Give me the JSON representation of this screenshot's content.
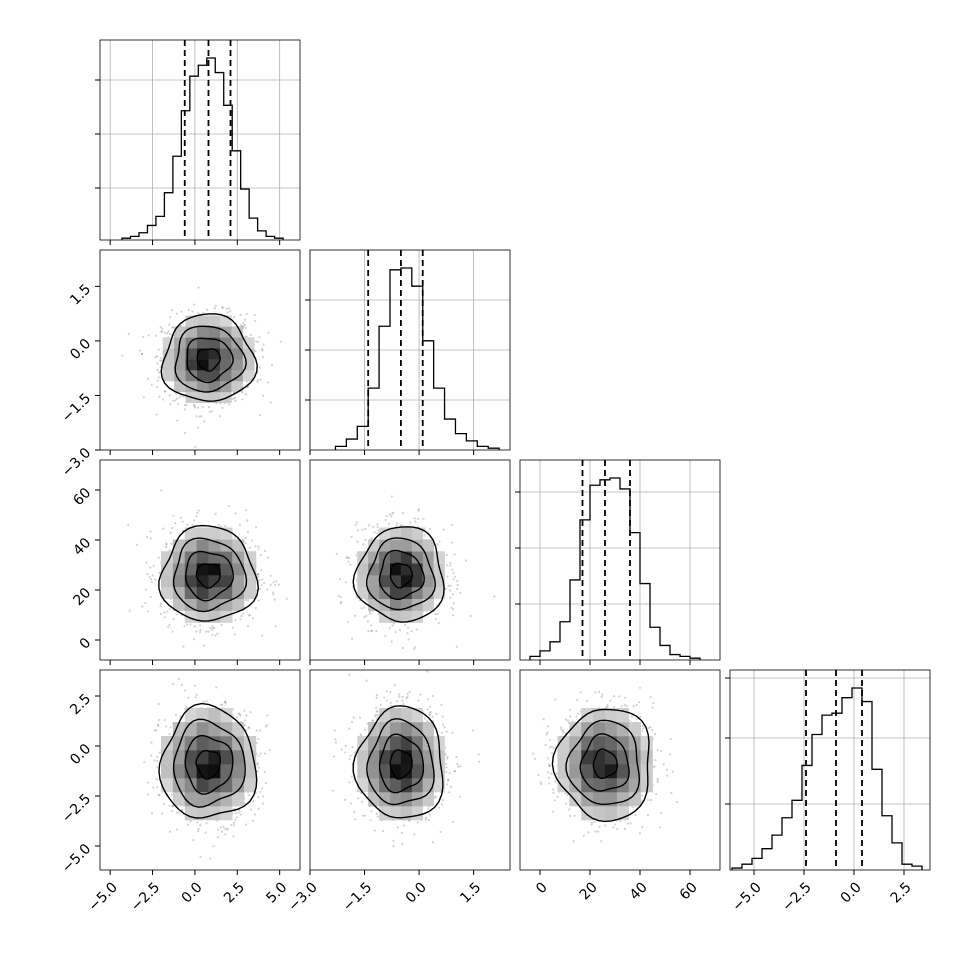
{
  "chart_data": {
    "type": "corner",
    "parameters": [
      {
        "id": "p0",
        "range": [
          -5.6,
          6.2
        ],
        "ticks": [
          -5.0,
          -2.5,
          0.0,
          2.5,
          5.0
        ],
        "tick_labels": [
          "−5.0",
          "−2.5",
          "0.0",
          "2.5",
          "5.0"
        ],
        "median": 0.8,
        "quantile_16": -0.6,
        "quantile_84": 2.1,
        "histogram": {
          "bin_edges": [
            -4.3,
            -3.8,
            -3.3,
            -2.8,
            -2.3,
            -1.8,
            -1.3,
            -0.8,
            -0.3,
            0.2,
            0.7,
            1.2,
            1.7,
            2.2,
            2.7,
            3.2,
            3.7,
            4.2,
            4.7,
            5.2
          ],
          "counts": [
            0.01,
            0.02,
            0.04,
            0.08,
            0.13,
            0.26,
            0.46,
            0.71,
            0.9,
            0.96,
            1.0,
            0.92,
            0.74,
            0.49,
            0.28,
            0.12,
            0.05,
            0.02,
            0.01
          ]
        },
        "y_ticks_relative": [
          0.26,
          0.53,
          0.8
        ]
      },
      {
        "id": "p1",
        "range": [
          -3.0,
          2.5
        ],
        "ticks": [
          -3.0,
          -1.5,
          0.0,
          1.5
        ],
        "tick_labels": [
          "−3.0",
          "−1.5",
          "0.0",
          "1.5"
        ],
        "median": -0.5,
        "quantile_16": -1.4,
        "quantile_84": 0.1,
        "histogram": {
          "bin_edges": [
            -2.3,
            -2.0,
            -1.7,
            -1.4,
            -1.1,
            -0.8,
            -0.5,
            -0.2,
            0.1,
            0.4,
            0.7,
            1.0,
            1.3,
            1.6,
            1.9,
            2.2
          ],
          "counts": [
            0.02,
            0.06,
            0.13,
            0.34,
            0.68,
            0.99,
            1.0,
            0.9,
            0.6,
            0.34,
            0.17,
            0.09,
            0.05,
            0.02,
            0.01
          ]
        },
        "y_ticks_relative": [
          0.25,
          0.5,
          0.75
        ]
      },
      {
        "id": "p2",
        "range": [
          -8,
          72
        ],
        "ticks": [
          0,
          20,
          40,
          60
        ],
        "tick_labels": [
          "0",
          "20",
          "40",
          "60"
        ],
        "median": 26,
        "quantile_16": 17,
        "quantile_84": 36,
        "histogram": {
          "bin_edges": [
            -4,
            0,
            4,
            8,
            12,
            16,
            20,
            24,
            28,
            32,
            36,
            40,
            44,
            48,
            52,
            56,
            60,
            64
          ],
          "counts": [
            0.02,
            0.05,
            0.1,
            0.21,
            0.44,
            0.77,
            0.96,
            0.99,
            1.0,
            0.94,
            0.7,
            0.42,
            0.18,
            0.08,
            0.03,
            0.02,
            0.01
          ]
        },
        "y_ticks_relative": [
          0.28,
          0.56,
          0.84
        ]
      },
      {
        "id": "p3",
        "range": [
          -6.2,
          3.8
        ],
        "ticks": [
          -5.0,
          -2.5,
          0.0,
          2.5
        ],
        "tick_labels": [
          "−5.0",
          "−2.5",
          "0.0",
          "2.5"
        ],
        "median": -0.9,
        "quantile_16": -2.4,
        "quantile_84": 0.4,
        "histogram": {
          "bin_edges": [
            -6.1,
            -5.6,
            -5.1,
            -4.6,
            -4.1,
            -3.6,
            -3.1,
            -2.6,
            -2.1,
            -1.6,
            -1.1,
            -0.6,
            -0.1,
            0.4,
            0.9,
            1.4,
            1.9,
            2.4,
            2.9,
            3.4
          ],
          "counts": [
            0.01,
            0.03,
            0.06,
            0.11,
            0.18,
            0.27,
            0.36,
            0.54,
            0.7,
            0.8,
            0.81,
            0.89,
            0.94,
            0.87,
            0.52,
            0.28,
            0.14,
            0.03,
            0.02
          ]
        },
        "y_ticks_relative": [
          0.33,
          0.66,
          0.96
        ]
      }
    ],
    "joint_distributions": [
      {
        "x": "p0",
        "y": "p1",
        "x_center": 0.8,
        "y_center": -0.5,
        "x_spread": 1.35,
        "y_spread": 0.6
      },
      {
        "x": "p0",
        "y": "p2",
        "x_center": 0.8,
        "y_center": 26,
        "x_spread": 1.4,
        "y_spread": 9.5
      },
      {
        "x": "p1",
        "y": "p2",
        "x_center": -0.5,
        "y_center": 26,
        "x_spread": 0.6,
        "y_spread": 9.5
      },
      {
        "x": "p0",
        "y": "p3",
        "x_center": 0.8,
        "y_center": -0.9,
        "x_spread": 1.4,
        "y_spread": 1.4
      },
      {
        "x": "p1",
        "y": "p3",
        "x_center": -0.5,
        "y_center": -0.9,
        "x_spread": 0.6,
        "y_spread": 1.4
      },
      {
        "x": "p2",
        "y": "p3",
        "x_center": 26,
        "y_center": -0.9,
        "x_spread": 9.5,
        "y_spread": 1.4
      }
    ],
    "contour_levels_sigma": [
      0.5,
      1.0,
      1.5,
      2.0
    ],
    "grid": true,
    "colors": {
      "line": "#000000",
      "grid": "#b0b0b0",
      "scatter": "#7f7f7f",
      "density_dark": "#111111"
    }
  }
}
